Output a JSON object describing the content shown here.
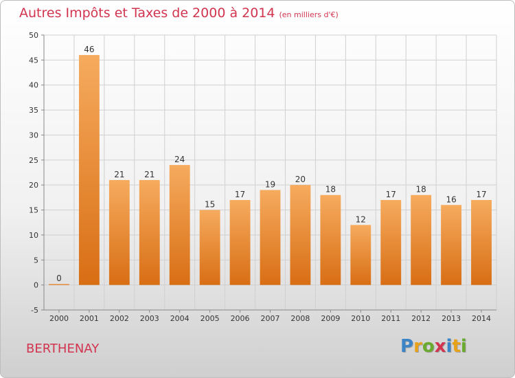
{
  "title": "Autres Impôts et Taxes de 2000 à 2014",
  "subtitle": "(en milliers d'€)",
  "place": "BERTHENAY",
  "logo": {
    "text": "Proxiti",
    "letters": [
      {
        "char": "P",
        "color": "#3c84c6"
      },
      {
        "char": "r",
        "color": "#e8a21a"
      },
      {
        "char": "o",
        "color": "#6aab2e"
      },
      {
        "char": "x",
        "color": "#d2344f"
      },
      {
        "char": "i",
        "color": "#3c84c6"
      },
      {
        "char": "t",
        "color": "#e8a21a"
      },
      {
        "char": "i",
        "color": "#6aab2e"
      }
    ]
  },
  "colors": {
    "bar_light": "#f6ab5e",
    "bar_dark": "#d86e14",
    "grid": "#d0d0d0",
    "axis": "#888888",
    "title": "#d2344f"
  },
  "chart_data": {
    "type": "bar",
    "title": "Autres Impôts et Taxes de 2000 à 2014",
    "subtitle": "(en milliers d'€)",
    "categories": [
      "2000",
      "2001",
      "2002",
      "2003",
      "2004",
      "2005",
      "2006",
      "2007",
      "2008",
      "2009",
      "2010",
      "2011",
      "2012",
      "2013",
      "2014"
    ],
    "values": [
      0,
      46,
      21,
      21,
      24,
      15,
      17,
      19,
      20,
      18,
      12,
      17,
      18,
      16,
      17
    ],
    "ylim": [
      -5,
      50
    ],
    "yticks": [
      -5,
      0,
      5,
      10,
      15,
      20,
      25,
      30,
      35,
      40,
      45,
      50
    ],
    "grid": true,
    "data_labels": true
  }
}
